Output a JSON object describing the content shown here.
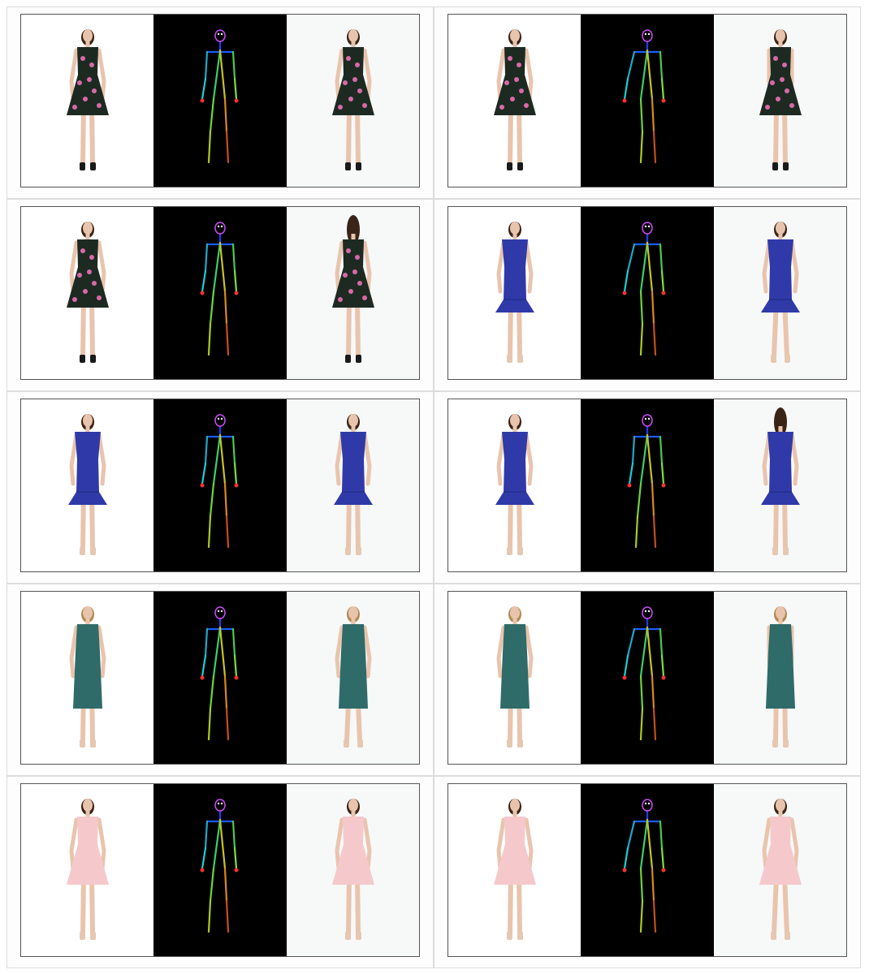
{
  "rows": [
    {
      "pairs": [
        {
          "dress": "floral",
          "target_view": "front",
          "pose": "front"
        },
        {
          "dress": "floral",
          "target_view": "side",
          "pose": "side"
        }
      ]
    },
    {
      "pairs": [
        {
          "dress": "floral",
          "target_view": "back",
          "pose": "back"
        },
        {
          "dress": "blue",
          "target_view": "three-quarter",
          "pose": "side"
        }
      ]
    },
    {
      "pairs": [
        {
          "dress": "blue",
          "target_view": "front",
          "pose": "front"
        },
        {
          "dress": "blue",
          "target_view": "back",
          "pose": "back"
        }
      ]
    },
    {
      "pairs": [
        {
          "dress": "teal-lace",
          "target_view": "three-quarter",
          "pose": "front"
        },
        {
          "dress": "teal-lace",
          "target_view": "side",
          "pose": "side"
        }
      ]
    },
    {
      "pairs": [
        {
          "dress": "pink",
          "target_view": "front",
          "pose": "front"
        },
        {
          "dress": "pink",
          "target_view": "three-quarter",
          "pose": "side"
        }
      ]
    }
  ],
  "colors": {
    "floral": "#1d2a22",
    "floral_accent": "#d86aa8",
    "blue": "#2f3aa8",
    "teal-lace": "#2f6b68",
    "pink": "#f5c9cc",
    "skin": "#e9c4ad",
    "hair_dark": "#3a2418",
    "hair_light": "#b08a55",
    "shoe_dark": "#1a1a1a",
    "shoe_light": "#e6c7b0"
  }
}
